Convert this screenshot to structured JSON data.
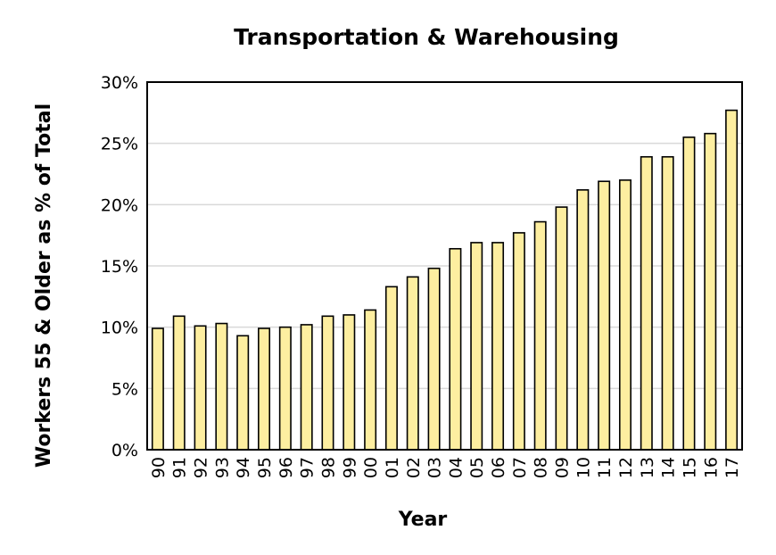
{
  "chart_data": {
    "type": "bar",
    "title": "Transportation & Warehousing",
    "xlabel": "Year",
    "ylabel": "Workers 55 & Older as % of Total",
    "categories": [
      "90",
      "91",
      "92",
      "93",
      "94",
      "95",
      "96",
      "97",
      "98",
      "99",
      "00",
      "01",
      "02",
      "03",
      "04",
      "05",
      "06",
      "07",
      "08",
      "09",
      "10",
      "11",
      "12",
      "13",
      "14",
      "15",
      "16",
      "17"
    ],
    "values": [
      9.9,
      10.9,
      10.1,
      10.3,
      9.3,
      9.9,
      10.0,
      10.2,
      10.9,
      11.0,
      11.4,
      13.3,
      14.1,
      14.8,
      16.4,
      16.9,
      16.9,
      17.7,
      18.6,
      19.8,
      21.2,
      21.9,
      22.0,
      23.9,
      23.9,
      25.5,
      25.8,
      27.7
    ],
    "ylim": [
      0,
      30
    ],
    "yticks": [
      0,
      5,
      10,
      15,
      20,
      25,
      30
    ],
    "ytick_labels": [
      "0%",
      "5%",
      "10%",
      "15%",
      "20%",
      "25%",
      "30%"
    ],
    "grid": true,
    "legend": "none",
    "bar_color": "#fdeea0",
    "bar_edge_color": "#000000",
    "grid_color": "#d9d9d9"
  }
}
